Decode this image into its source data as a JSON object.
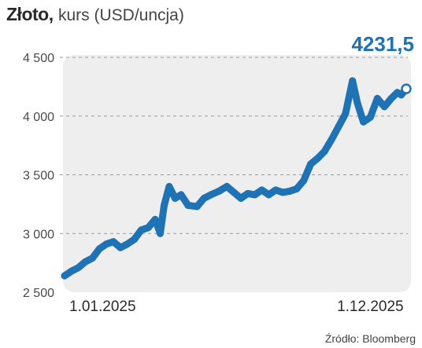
{
  "header": {
    "title_bold": "Złoto,",
    "title_rest": "kurs (USD/uncja)"
  },
  "source": "Źródło: Bloomberg",
  "colors": {
    "line": "#1f73b5",
    "plot_bg": "#eeeeee",
    "grid": "#9a9a9a",
    "label": "#1f73b5"
  },
  "chart_data": {
    "type": "line",
    "ylim": [
      2500,
      4500
    ],
    "yticks": [
      {
        "value": 4500,
        "label": "4 500"
      },
      {
        "value": 4000,
        "label": "4 000"
      },
      {
        "value": 3500,
        "label": "3 500"
      },
      {
        "value": 3000,
        "label": "3 000"
      },
      {
        "value": 2500,
        "label": "2 500"
      }
    ],
    "xticks": [
      {
        "value": "2025-01-01",
        "label": "1.01.2025"
      },
      {
        "value": "2025-12-01",
        "label": "1.12.2025"
      }
    ],
    "x": [
      "2025-01-01",
      "2025-01-08",
      "2025-01-15",
      "2025-01-22",
      "2025-01-29",
      "2025-02-05",
      "2025-02-12",
      "2025-02-19",
      "2025-02-26",
      "2025-03-05",
      "2025-03-12",
      "2025-03-19",
      "2025-03-26",
      "2025-04-02",
      "2025-04-07",
      "2025-04-11",
      "2025-04-16",
      "2025-04-22",
      "2025-04-28",
      "2025-05-05",
      "2025-05-14",
      "2025-05-21",
      "2025-05-28",
      "2025-06-05",
      "2025-06-13",
      "2025-06-20",
      "2025-06-27",
      "2025-07-04",
      "2025-07-11",
      "2025-07-18",
      "2025-07-25",
      "2025-08-01",
      "2025-08-08",
      "2025-08-15",
      "2025-08-22",
      "2025-08-29",
      "2025-09-05",
      "2025-09-12",
      "2025-09-19",
      "2025-09-26",
      "2025-10-03",
      "2025-10-10",
      "2025-10-17",
      "2025-10-22",
      "2025-10-28",
      "2025-11-04",
      "2025-11-11",
      "2025-11-18",
      "2025-11-25",
      "2025-12-01",
      "2025-12-05",
      "2025-12-10"
    ],
    "values": [
      2640,
      2680,
      2710,
      2760,
      2790,
      2870,
      2910,
      2930,
      2880,
      2910,
      2950,
      3030,
      3050,
      3120,
      3000,
      3240,
      3400,
      3300,
      3330,
      3240,
      3230,
      3300,
      3330,
      3360,
      3400,
      3350,
      3300,
      3340,
      3330,
      3370,
      3330,
      3370,
      3350,
      3360,
      3380,
      3450,
      3590,
      3640,
      3700,
      3800,
      3910,
      4020,
      4300,
      4110,
      3950,
      3990,
      4150,
      4080,
      4150,
      4200,
      4180,
      4231.5
    ],
    "last_value_label": "4231,5"
  }
}
